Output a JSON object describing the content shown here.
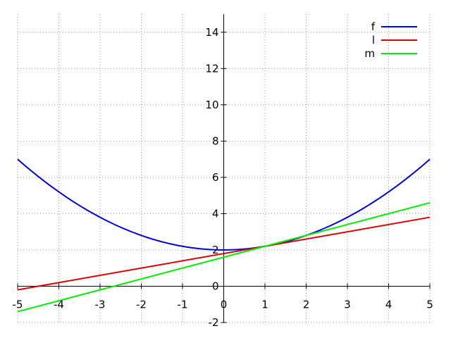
{
  "chart_data": {
    "type": "line",
    "title": "",
    "xlabel": "",
    "ylabel": "",
    "xlim": [
      -5,
      5
    ],
    "ylim": [
      -2,
      15
    ],
    "grid": true,
    "legend_placement": "top-right",
    "x_ticks": [
      -5,
      -4,
      -3,
      -2,
      -1,
      0,
      1,
      2,
      3,
      4,
      5
    ],
    "y_ticks": [
      -2,
      0,
      2,
      4,
      6,
      8,
      10,
      12,
      14
    ],
    "series": [
      {
        "name": "f",
        "color": "#0000dd",
        "x": [
          -5,
          -4,
          -3,
          -2,
          -1,
          0,
          1,
          2,
          3,
          4,
          5
        ],
        "y": [
          7.0,
          5.2,
          3.8,
          2.8,
          2.2,
          2.0,
          2.2,
          2.8,
          3.8,
          5.2,
          7.0
        ]
      },
      {
        "name": "l",
        "color": "#dd0000",
        "x": [
          -5,
          5
        ],
        "y": [
          -0.2,
          3.8
        ]
      },
      {
        "name": "m",
        "color": "#00ee00",
        "x": [
          -5,
          5
        ],
        "y": [
          -1.4,
          4.6
        ]
      }
    ]
  }
}
